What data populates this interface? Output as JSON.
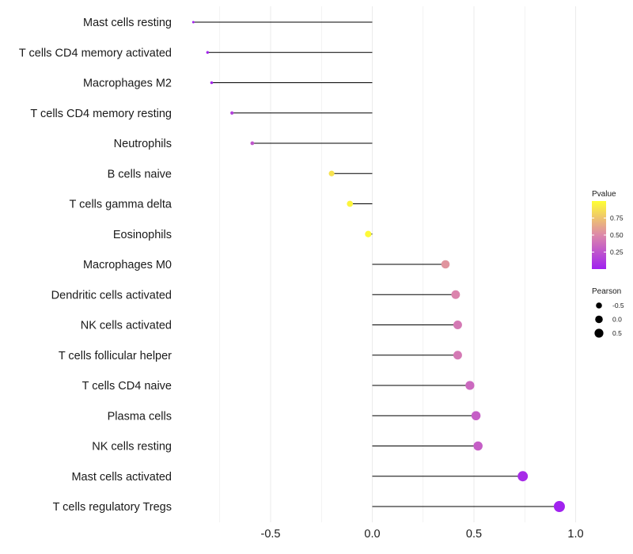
{
  "chart_data": {
    "type": "lollipop",
    "title": "",
    "xlabel": "",
    "ylabel": "",
    "xlim": [
      -0.9,
      1.0
    ],
    "x_ticks": [
      -0.5,
      0.0,
      0.5,
      1.0
    ],
    "x_tick_labels": [
      "-0.5",
      "0.0",
      "0.5",
      "1.0"
    ],
    "grid": true,
    "legend_position": "right",
    "categories": [
      "Mast cells resting",
      "T cells CD4 memory activated",
      "Macrophages M2",
      "T cells CD4 memory resting",
      "Neutrophils",
      "B cells naive",
      "T cells gamma delta",
      "Eosinophils",
      "Macrophages M0",
      "Dendritic cells activated",
      "NK cells activated",
      "T cells follicular helper",
      "T cells CD4 naive",
      "Plasma cells",
      "NK cells resting",
      "Mast cells activated",
      "T cells regulatory  Tregs"
    ],
    "pearson": [
      -0.88,
      -0.81,
      -0.79,
      -0.69,
      -0.59,
      -0.2,
      -0.11,
      -0.02,
      0.36,
      0.41,
      0.42,
      0.42,
      0.48,
      0.51,
      0.52,
      0.74,
      0.92
    ],
    "pvalue": [
      0.02,
      0.03,
      0.04,
      0.15,
      0.26,
      0.88,
      0.96,
      0.98,
      0.55,
      0.48,
      0.43,
      0.43,
      0.35,
      0.3,
      0.3,
      0.06,
      0.01
    ],
    "legend": {
      "color_title": "Pvalue",
      "color_ticks": [
        0.25,
        0.5,
        0.75
      ],
      "color_tick_labels": [
        "0.25",
        "0.50",
        "0.75"
      ],
      "color_low": "#a020f0",
      "color_mid": "#dd88aa",
      "color_high": "#ffff33",
      "size_title": "Pearson",
      "size_ticks": [
        -0.5,
        0.0,
        0.5
      ],
      "size_tick_labels": [
        "-0.5",
        "0.0",
        "0.5"
      ]
    },
    "segment_color": "#000000",
    "grid_color": "#ebebeb"
  }
}
